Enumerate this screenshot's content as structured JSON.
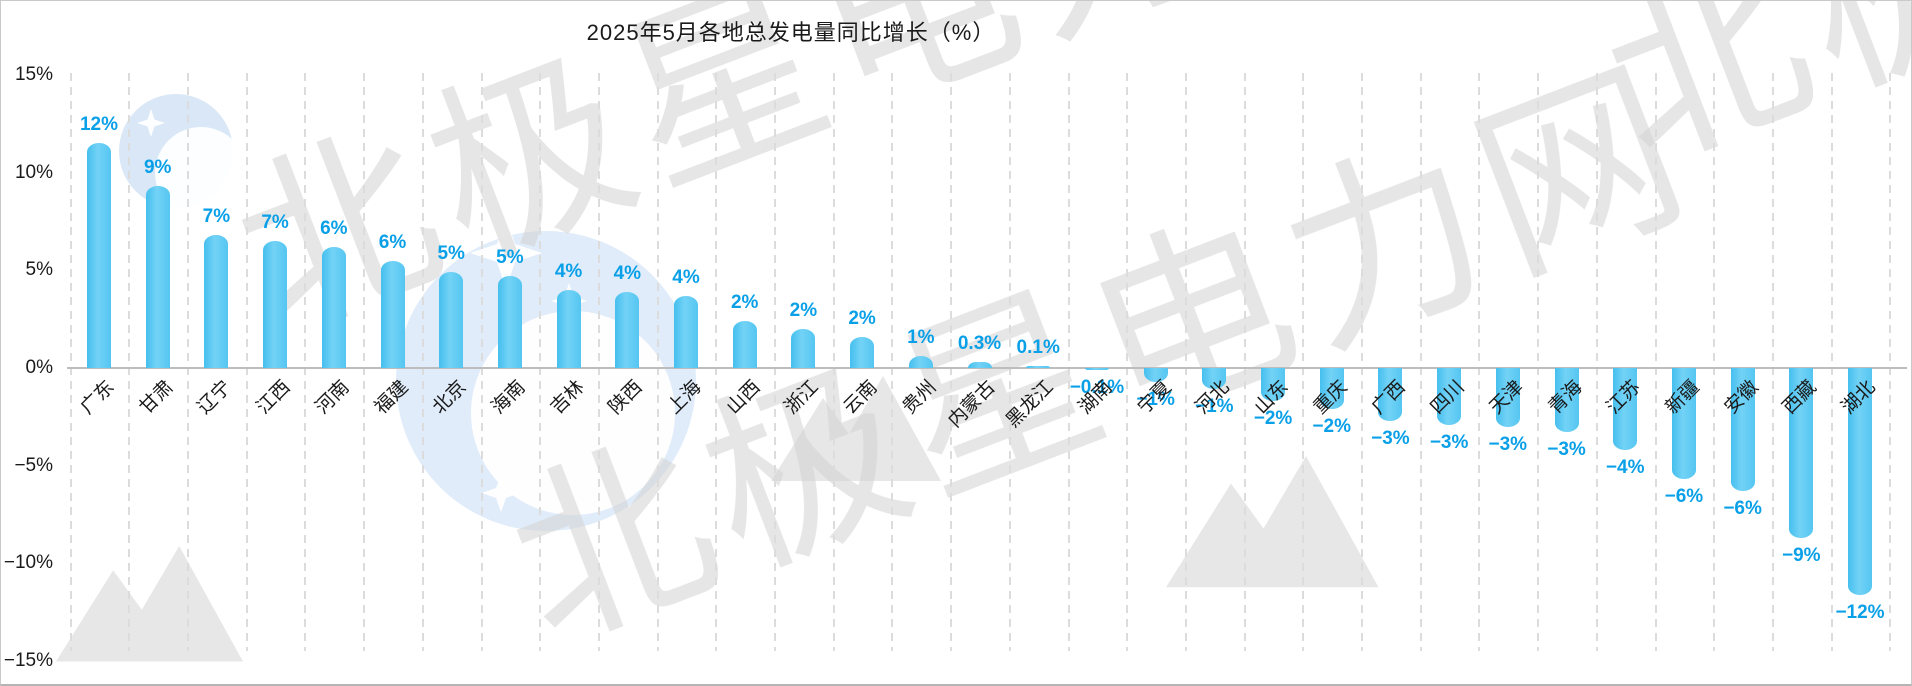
{
  "watermark": {
    "text": "北极星电力网"
  },
  "chart_data": {
    "type": "bar",
    "title": "2025年5月各地总发电量同比增长（%）",
    "categories": [
      "广东",
      "甘肃",
      "辽宁",
      "江西",
      "河南",
      "福建",
      "北京",
      "海南",
      "吉林",
      "陕西",
      "上海",
      "山西",
      "浙江",
      "云南",
      "贵州",
      "内蒙古",
      "黑龙江",
      "湖南",
      "宁夏",
      "河北",
      "山东",
      "重庆",
      "广西",
      "四川",
      "天津",
      "青海",
      "江苏",
      "新疆",
      "安徽",
      "西藏",
      "湖北"
    ],
    "values": [
      11.5,
      9.3,
      6.8,
      6.5,
      6.2,
      5.5,
      4.9,
      4.7,
      4.0,
      3.9,
      3.7,
      2.4,
      2.0,
      1.6,
      0.6,
      0.3,
      0.1,
      -0.1,
      -0.7,
      -1.1,
      -1.7,
      -2.1,
      -2.7,
      -2.9,
      -3.0,
      -3.3,
      -4.2,
      -5.7,
      -6.3,
      -8.7,
      -11.6
    ],
    "labels": [
      "12%",
      "9%",
      "7%",
      "7%",
      "6%",
      "6%",
      "5%",
      "5%",
      "4%",
      "4%",
      "4%",
      "2%",
      "2%",
      "2%",
      "1%",
      "0.3%",
      "0.1%",
      "−0.1%",
      "−1%",
      "−1%",
      "−2%",
      "−2%",
      "−3%",
      "−3%",
      "−3%",
      "−3%",
      "−4%",
      "−6%",
      "−6%",
      "−9%",
      "−12%"
    ],
    "y_axis_ticks": [
      {
        "label": "15%",
        "value": 15
      },
      {
        "label": "10%",
        "value": 10
      },
      {
        "label": "5%",
        "value": 5
      },
      {
        "label": "0%",
        "value": 0
      },
      {
        "label": "−5%",
        "value": -5
      },
      {
        "label": "−10%",
        "value": -10
      },
      {
        "label": "−15%",
        "value": -15
      }
    ],
    "ylim": [
      -15,
      15
    ],
    "grid": "vertical-dashed",
    "legend": "none",
    "colors": {
      "bar": "#5CC8F2",
      "value_label": "#0AA0E8",
      "axis_text": "#1A1A1A",
      "grid_line": "#DCDCDC",
      "zero_line": "#BDBDBD"
    }
  }
}
